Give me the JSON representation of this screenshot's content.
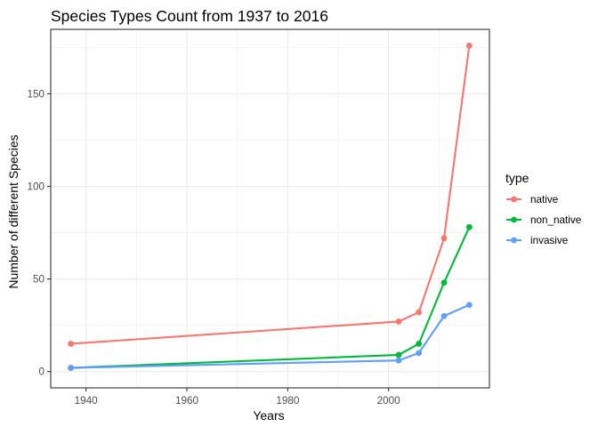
{
  "chart_data": {
    "type": "line",
    "title": "Species Types Count from 1937 to 2016",
    "xlabel": "Years",
    "ylabel": "Number of different Species",
    "xlim": [
      1933,
      2020
    ],
    "ylim": [
      -8.8,
      184.8
    ],
    "x_ticks": [
      1940,
      1960,
      1980,
      2000
    ],
    "y_ticks": [
      0,
      50,
      100,
      150
    ],
    "grid": true,
    "legend": {
      "title": "type",
      "placement": "right"
    },
    "x": [
      1937,
      2002,
      2006,
      2011,
      2016
    ],
    "series": [
      {
        "name": "native",
        "color": "#F8766D",
        "values": [
          15,
          27,
          32,
          72,
          176
        ]
      },
      {
        "name": "non_native",
        "color": "#00BA38",
        "values": [
          2,
          9,
          15,
          48,
          78
        ]
      },
      {
        "name": "invasive",
        "color": "#619CFF",
        "values": [
          2,
          6,
          10,
          30,
          36
        ]
      }
    ]
  }
}
